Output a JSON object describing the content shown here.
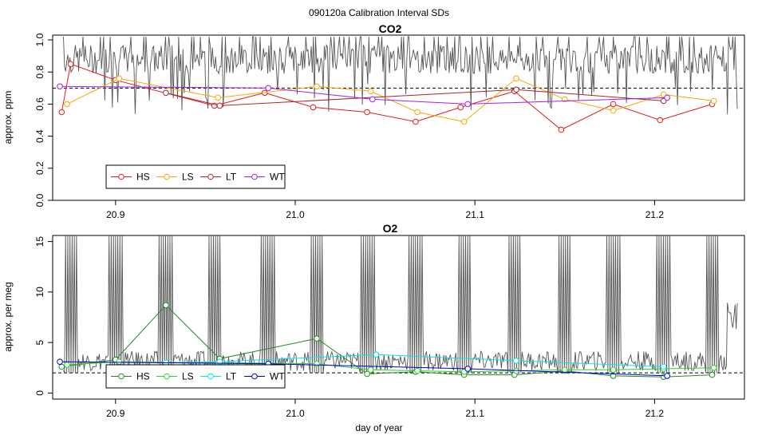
{
  "main_title": "090120a   Calibration Interval SDs",
  "xlabel": "day of year",
  "chart_data": [
    {
      "type": "line",
      "title": "CO2",
      "ylabel": "approx. ppm",
      "xlim": [
        20.865,
        21.25
      ],
      "ylim": [
        0.0,
        1.03
      ],
      "xticks": [
        20.9,
        21.0,
        21.1,
        21.2
      ],
      "xtick_labels": [
        "20.9",
        "21.0",
        "21.1",
        "21.2"
      ],
      "yticks": [
        0.0,
        0.2,
        0.4,
        0.6,
        0.8,
        1.0
      ],
      "ytick_labels": [
        "0.0",
        "0.2",
        "0.4",
        "0.6",
        "0.8",
        "1.0"
      ],
      "reference_line": 0.7,
      "background_trace": {
        "name": "instrument trace",
        "color": "#555555",
        "baseline": 0.88,
        "amplitude": 0.09,
        "clip_top": 1.02
      },
      "legend": {
        "position": "bottom-left"
      },
      "series": [
        {
          "name": "HS",
          "color": "#e31a1c",
          "x": [
            20.87,
            20.875,
            20.9,
            20.955,
            20.983,
            21.01,
            21.04,
            21.067,
            21.092,
            21.122,
            21.148,
            21.177,
            21.203,
            21.232
          ],
          "y": [
            0.55,
            0.85,
            0.75,
            0.59,
            0.67,
            0.58,
            0.55,
            0.49,
            0.58,
            0.68,
            0.44,
            0.6,
            0.5,
            0.6
          ]
        },
        {
          "name": "LS",
          "color": "#ffa500",
          "x": [
            20.873,
            20.902,
            20.957,
            21.012,
            21.042,
            21.068,
            21.094,
            21.123,
            21.15,
            21.177,
            21.205,
            21.233
          ],
          "y": [
            0.6,
            0.76,
            0.64,
            0.71,
            0.68,
            0.55,
            0.49,
            0.76,
            0.63,
            0.56,
            0.66,
            0.62
          ]
        },
        {
          "name": "LT",
          "color": "#a52a2a",
          "x": [
            20.928,
            20.958,
            21.123,
            21.205
          ],
          "y": [
            0.67,
            0.59,
            0.69,
            0.62
          ]
        },
        {
          "name": "WT",
          "color": "#a020f0",
          "x": [
            20.869,
            20.985,
            21.043,
            21.096,
            21.207
          ],
          "y": [
            0.71,
            0.7,
            0.63,
            0.6,
            0.64
          ]
        }
      ]
    },
    {
      "type": "line",
      "title": "O2",
      "ylabel": "approx. per meg",
      "xlim": [
        20.865,
        21.25
      ],
      "ylim": [
        -0.6,
        15.6
      ],
      "xticks": [
        20.9,
        21.0,
        21.1,
        21.2
      ],
      "xtick_labels": [
        "20.9",
        "21.0",
        "21.1",
        "21.2"
      ],
      "yticks": [
        0,
        5,
        10,
        15
      ],
      "ytick_labels": [
        "0",
        "5",
        "10",
        "15"
      ],
      "reference_line": 2.0,
      "background_trace": {
        "name": "instrument trace",
        "color": "#555555",
        "baseline": 2.6,
        "amplitude": 1.2,
        "clip_top": 15.6
      },
      "legend": {
        "position": "bottom-left"
      },
      "series": [
        {
          "name": "HS",
          "color": "#228b22",
          "x": [
            20.87,
            20.9,
            20.928,
            20.958,
            21.012,
            21.04,
            21.067,
            21.094,
            21.122,
            21.15,
            21.177,
            21.205,
            21.232
          ],
          "y": [
            2.6,
            3.3,
            8.7,
            3.4,
            5.4,
            1.9,
            2.1,
            1.8,
            1.8,
            2.2,
            1.7,
            1.6,
            1.8
          ]
        },
        {
          "name": "LS",
          "color": "#32cd32",
          "x": [
            20.873,
            20.902,
            20.957,
            21.012,
            21.042,
            21.068,
            21.094,
            21.123,
            21.15,
            21.177,
            21.205,
            21.233
          ],
          "y": [
            2.8,
            3.1,
            3.0,
            2.9,
            2.3,
            2.2,
            2.1,
            2.2,
            2.3,
            2.3,
            2.4,
            2.5
          ]
        },
        {
          "name": "LT",
          "color": "#00e5ee",
          "x": [
            20.928,
            20.958,
            21.045,
            21.123,
            21.205
          ],
          "y": [
            3.0,
            3.1,
            3.8,
            3.2,
            2.6
          ]
        },
        {
          "name": "WT",
          "color": "#0000cd",
          "x": [
            20.869,
            20.985,
            21.096,
            21.207
          ],
          "y": [
            3.1,
            2.9,
            2.4,
            1.7
          ]
        }
      ]
    }
  ]
}
